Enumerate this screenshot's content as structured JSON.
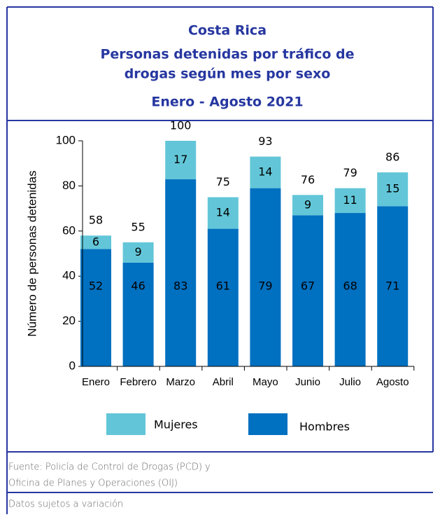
{
  "chart_data": {
    "type": "stacked_bar",
    "title": "Costa Rica",
    "subtitle": [
      "Personas detenidas  por tráfico de",
      "drogas según mes por sexo"
    ],
    "period": "Enero - Agosto 2021",
    "ylabel": "Número de personas detenidas",
    "categories": [
      "Enero",
      "Febrero",
      "Marzo",
      "Abril",
      "Mayo",
      "Junio",
      "Julio",
      "Agosto"
    ],
    "series": [
      {
        "name": "Hombres",
        "color": "#0070c0",
        "values": [
          52,
          46,
          83,
          61,
          79,
          67,
          68,
          71
        ]
      },
      {
        "name": "Mujeres",
        "color": "#62c6d8",
        "values": [
          6,
          9,
          17,
          14,
          14,
          9,
          11,
          15
        ]
      }
    ],
    "totals": [
      58,
      55,
      100,
      75,
      93,
      76,
      79,
      86
    ],
    "ylim": [
      0,
      100
    ],
    "yticks": [
      0,
      20,
      40,
      60,
      80,
      100
    ],
    "source": [
      "Fuente: Policía de Control de Drogas (PCD) y",
      "Oficina de Planes y Operaciones (OIJ)"
    ],
    "note": "Datos sujetos a variación"
  }
}
